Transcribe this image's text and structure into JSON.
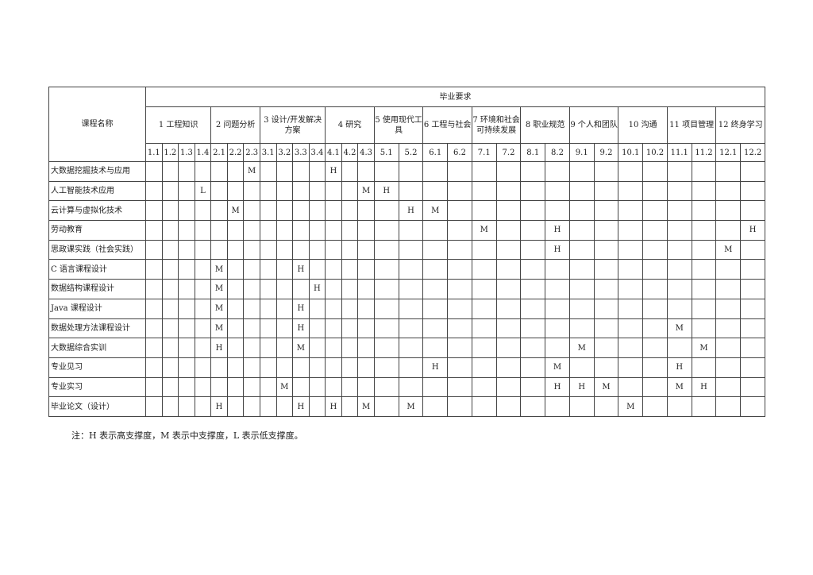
{
  "table": {
    "name_header": "课程名称",
    "group_header": "毕业要求",
    "requirements": [
      {
        "label": "1 工程知识",
        "subs": [
          "1.1",
          "1.2",
          "1.3",
          "1.4"
        ]
      },
      {
        "label": "2 问题分析",
        "subs": [
          "2.1",
          "2.2",
          "2.3"
        ]
      },
      {
        "label": "3 设计/开发解决方案",
        "subs": [
          "3.1",
          "3.2",
          "3.3",
          "3.4"
        ]
      },
      {
        "label": "4 研究",
        "subs": [
          "4.1",
          "4.2",
          "4.3"
        ]
      },
      {
        "label": "5 使用现代工具",
        "subs": [
          "5.1",
          "5.2"
        ]
      },
      {
        "label": "6 工程与社会",
        "subs": [
          "6.1",
          "6.2"
        ]
      },
      {
        "label": "7 环境和社会可持续发展",
        "subs": [
          "7.1",
          "7.2"
        ]
      },
      {
        "label": "8 职业规范",
        "subs": [
          "8.1",
          "8.2"
        ]
      },
      {
        "label": "9 个人和团队",
        "subs": [
          "9.1",
          "9.2"
        ]
      },
      {
        "label": "10 沟通",
        "subs": [
          "10.1",
          "10.2"
        ]
      },
      {
        "label": "11 项目管理",
        "subs": [
          "11.1",
          "11.2"
        ]
      },
      {
        "label": "12 终身学习",
        "subs": [
          "12.1",
          "12.2"
        ]
      }
    ],
    "rows": [
      {
        "name": "大数据挖掘技术与应用",
        "marks": {
          "2.3": "M",
          "4.1": "H"
        }
      },
      {
        "name": "人工智能技术应用",
        "marks": {
          "1.4": "L",
          "4.3": "M",
          "5.1": "H"
        }
      },
      {
        "name": "云计算与虚拟化技术",
        "marks": {
          "2.2": "M",
          "5.2": "H",
          "6.1": "M"
        }
      },
      {
        "name": "劳动教育",
        "marks": {
          "7.1": "M",
          "8.2": "H",
          "12.2": "H"
        }
      },
      {
        "name": "思政课实践（社会实践）",
        "marks": {
          "8.2": "H",
          "12.1": "M"
        }
      },
      {
        "name": "C 语言课程设计",
        "marks": {
          "2.1": "M",
          "3.3": "H"
        }
      },
      {
        "name": "数据结构课程设计",
        "marks": {
          "2.1": "M",
          "3.4": "H"
        }
      },
      {
        "name": "Java 课程设计",
        "marks": {
          "2.1": "M",
          "3.3": "H"
        }
      },
      {
        "name": "数据处理方法课程设计",
        "marks": {
          "2.1": "M",
          "3.3": "H",
          "11.1": "M"
        }
      },
      {
        "name": "大数据综合实训",
        "marks": {
          "2.1": "H",
          "3.3": "M",
          "9.1": "M",
          "11.2": "M"
        }
      },
      {
        "name": "专业见习",
        "marks": {
          "6.1": "H",
          "8.2": "M",
          "11.1": "H"
        }
      },
      {
        "name": "专业实习",
        "marks": {
          "3.2": "M",
          "8.2": "H",
          "9.1": "H",
          "9.2": "M",
          "11.1": "M",
          "11.2": "H"
        }
      },
      {
        "name": "毕业论文（设计）",
        "marks": {
          "2.1": "H",
          "3.3": "H",
          "4.1": "H",
          "4.3": "M",
          "5.2": "M",
          "10.1": "M"
        }
      }
    ]
  },
  "note": "注：H 表示高支撑度，M 表示中支撑度，L 表示低支撑度。"
}
